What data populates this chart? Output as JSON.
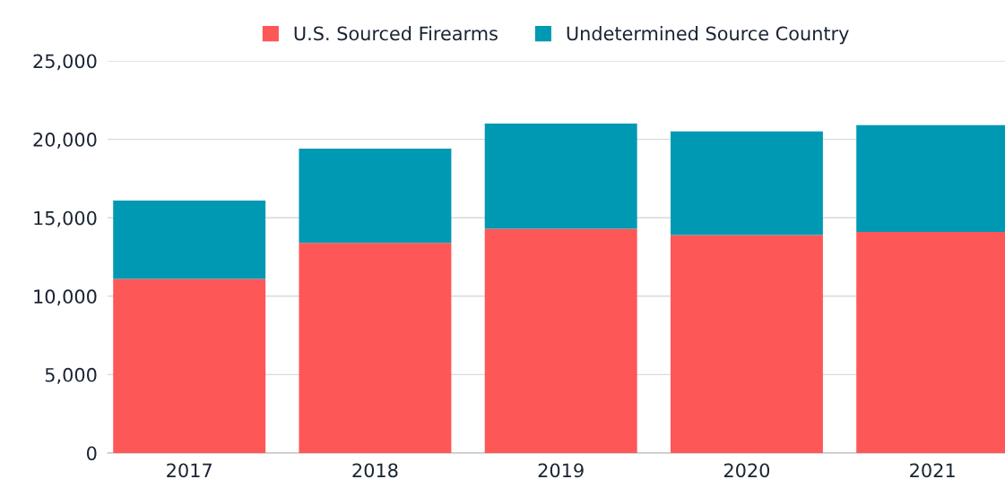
{
  "chart_data": {
    "type": "bar",
    "stacked": true,
    "categories": [
      "2017",
      "2018",
      "2019",
      "2020",
      "2021"
    ],
    "series": [
      {
        "name": "U.S. Sourced Firearms",
        "color": "#fe5757",
        "values": [
          11100,
          13400,
          14300,
          13900,
          14100
        ]
      },
      {
        "name": "Undetermined Source Country",
        "color": "#0099b4",
        "values": [
          5000,
          6000,
          6700,
          6600,
          6800
        ]
      }
    ],
    "ylim": [
      0,
      25000
    ],
    "yticks": [
      {
        "value": 0,
        "label": "0"
      },
      {
        "value": 5000,
        "label": "5,000"
      },
      {
        "value": 10000,
        "label": "10,000"
      },
      {
        "value": 15000,
        "label": "15,000"
      },
      {
        "value": 20000,
        "label": "20,000"
      },
      {
        "value": 25000,
        "label": "25,000"
      }
    ],
    "grid": "y",
    "legend": "top"
  }
}
